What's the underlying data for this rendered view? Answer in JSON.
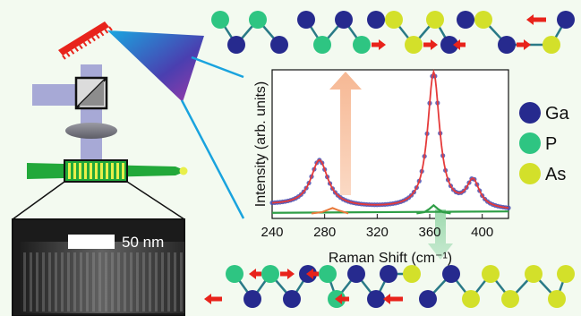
{
  "colors": {
    "background": "#f3faf0",
    "ga": "#262a8e",
    "p": "#2ec582",
    "as": "#d3e02a",
    "bond": "#2a7a87",
    "arrow": "#e8231b",
    "grating": "#e8231b",
    "beam": "#a7a9d6",
    "nanowire": "#22a83a",
    "stripes": "#e8ef4a",
    "fit": "#e53a3a",
    "data_points": "#4a4fb0",
    "p_peak_fill": "#f5b38f",
    "p_peak_stroke": "#e8793a",
    "as_peak_fill": "#9fd3a7",
    "as_peak_stroke": "#2f9e47",
    "blue_line": "#19a3de"
  },
  "legend": [
    {
      "symbol": "ga-atom-icon",
      "label": "Ga",
      "color": "#262a8e"
    },
    {
      "symbol": "p-atom-icon",
      "label": "P",
      "color": "#2ec582"
    },
    {
      "symbol": "as-atom-icon",
      "label": "As",
      "color": "#d3e02a"
    }
  ],
  "scale_bar": {
    "label": "50 nm"
  },
  "chart_data": {
    "type": "line",
    "title": "",
    "xlabel": "Raman Shift (cm⁻¹)",
    "ylabel": "Intensity (arb. units)",
    "xlim": [
      240,
      420
    ],
    "ylim": [
      0,
      1.05
    ],
    "xticks": [
      240,
      280,
      320,
      360,
      400
    ],
    "grid": false,
    "legend_placement": "right",
    "peaks": [
      {
        "position": 276,
        "height": 0.34,
        "width": 8
      },
      {
        "position": 363,
        "height": 1.0,
        "width": 5.5
      },
      {
        "position": 393,
        "height": 0.2,
        "width": 6
      }
    ],
    "series": [
      {
        "role": "fit",
        "x": [
          240,
          250,
          260,
          265,
          270,
          274,
          276,
          278,
          282,
          286,
          290,
          300,
          310,
          320,
          330,
          340,
          345,
          350,
          354,
          358,
          360,
          362,
          363,
          364,
          366,
          368,
          372,
          376,
          380,
          384,
          388,
          391,
          393,
          395,
          398,
          402,
          406,
          410,
          415,
          420
        ],
        "y": [
          0.04,
          0.07,
          0.13,
          0.19,
          0.27,
          0.32,
          0.34,
          0.33,
          0.26,
          0.18,
          0.13,
          0.09,
          0.09,
          0.1,
          0.13,
          0.19,
          0.25,
          0.38,
          0.55,
          0.82,
          0.93,
          0.99,
          1.0,
          0.99,
          0.9,
          0.76,
          0.48,
          0.3,
          0.21,
          0.17,
          0.17,
          0.19,
          0.2,
          0.19,
          0.15,
          0.1,
          0.07,
          0.05,
          0.04,
          0.03
        ]
      },
      {
        "role": "p-mode",
        "x": [
          270,
          278,
          282,
          286,
          290,
          298
        ],
        "y": [
          0.01,
          0.02,
          0.035,
          0.05,
          0.035,
          0.01
        ]
      },
      {
        "role": "as-mode",
        "x": [
          350,
          356,
          360,
          363,
          366,
          370,
          376
        ],
        "y": [
          0.01,
          0.02,
          0.045,
          0.07,
          0.045,
          0.02,
          0.01
        ]
      }
    ],
    "baseline": {
      "x": [
        240,
        330,
        420
      ],
      "y": [
        0.015,
        0.02,
        0.025
      ]
    }
  }
}
